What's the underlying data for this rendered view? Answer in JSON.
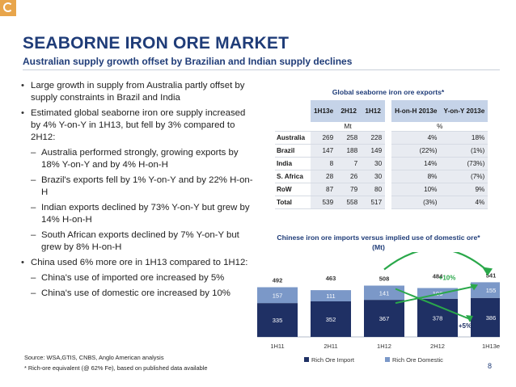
{
  "slide": {
    "title": "SEABORNE IRON ORE MARKET",
    "subtitle": "Australian supply growth offset by Brazilian and Indian supply declines",
    "page_number": "8",
    "source": "Source: WSA,GTIS, CNBS, Anglo American analysis",
    "footnote": "* Rich-ore equivalent (@ 62% Fe), based on published data available"
  },
  "bullets": [
    {
      "level": 1,
      "text": "Large growth in supply from Australia partly offset by supply constraints in Brazil and India"
    },
    {
      "level": 1,
      "text": "Estimated global seaborne iron ore supply increased by 4% Y-on-Y in 1H13, but fell by 3% compared to 2H12:"
    },
    {
      "level": 2,
      "text": "Australia performed strongly, growing exports by 18% Y-on-Y and by 4% H-on-H"
    },
    {
      "level": 2,
      "text": "Brazil's exports fell by 1% Y-on-Y and by 22% H-on-H"
    },
    {
      "level": 2,
      "text": "Indian exports declined by 73% Y-on-Y but grew by 14% H-on-H"
    },
    {
      "level": 2,
      "text": "South African exports declined by 7% Y-on-Y but grew by 8% H-on-H"
    },
    {
      "level": 1,
      "text": "China used 6% more ore in 1H13 compared to 1H12:"
    },
    {
      "level": 2,
      "text": "China's use of imported ore increased by 5%"
    },
    {
      "level": 2,
      "text": "China's use of domestic ore increased by 10%"
    }
  ],
  "table": {
    "title": "Global seaborne iron ore exports*",
    "headers": [
      "1H13e",
      "2H12",
      "1H12",
      "H-on-H 2013e",
      "Y-on-Y 2013e"
    ],
    "units": {
      "volume": "Mt",
      "change": "%"
    },
    "rows": [
      {
        "label": "Australia",
        "values": [
          "269",
          "258",
          "228"
        ],
        "changes": [
          "4%",
          "18%"
        ]
      },
      {
        "label": "Brazil",
        "values": [
          "147",
          "188",
          "149"
        ],
        "changes": [
          "(22%)",
          "(1%)"
        ]
      },
      {
        "label": "India",
        "values": [
          "8",
          "7",
          "30"
        ],
        "changes": [
          "14%",
          "(73%)"
        ]
      },
      {
        "label": "S. Africa",
        "values": [
          "28",
          "26",
          "30"
        ],
        "changes": [
          "8%",
          "(7%)"
        ]
      },
      {
        "label": "RoW",
        "values": [
          "87",
          "79",
          "80"
        ],
        "changes": [
          "10%",
          "9%"
        ]
      },
      {
        "label": "Total",
        "values": [
          "539",
          "558",
          "517"
        ],
        "changes": [
          "(3%)",
          "4%"
        ]
      }
    ]
  },
  "chart_data": {
    "type": "bar",
    "stacked": true,
    "title": "Chinese iron ore imports versus implied use of domestic ore*",
    "unit": "(Mt)",
    "categories": [
      "1H11",
      "2H11",
      "1H12",
      "2H12",
      "1H13e"
    ],
    "series": [
      {
        "name": "Rich Ore Import",
        "color": "#1f3064",
        "values": [
          335,
          352,
          367,
          378,
          386
        ]
      },
      {
        "name": "Rich Ore Domestic",
        "color": "#7b98c8",
        "values": [
          157,
          111,
          141,
          106,
          155
        ]
      }
    ],
    "totals": [
      492,
      463,
      508,
      484,
      541
    ],
    "ylim": [
      0,
      560
    ],
    "annotations": [
      {
        "text": "+6%",
        "from": "1H12",
        "to": "1H13e",
        "measure": "total",
        "color": "#2aa84a"
      },
      {
        "text": "+10%",
        "from": "1H12",
        "to": "1H13e",
        "measure": "domestic",
        "color": "#2aa84a"
      },
      {
        "text": "+5%",
        "from": "1H12",
        "to": "1H13e",
        "measure": "import",
        "color": "#2aa84a"
      }
    ],
    "legend_position": "bottom"
  }
}
